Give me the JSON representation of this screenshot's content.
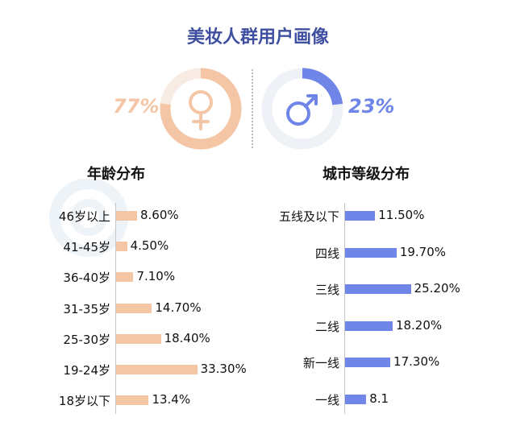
{
  "title": "美妆人群用户画像",
  "gender": {
    "female": {
      "pct_text": "77%",
      "value": 77,
      "color": "#f4c6a6",
      "icon": "female-icon"
    },
    "male": {
      "pct_text": "23%",
      "value": 23,
      "color": "#6f86e8",
      "icon": "male-icon"
    }
  },
  "chart_data": [
    {
      "type": "bar",
      "orientation": "horizontal",
      "title": "年龄分布",
      "categories": [
        "46岁以上",
        "41-45岁",
        "36-40岁",
        "31-35岁",
        "25-30岁",
        "19-24岁",
        "18岁以下"
      ],
      "values": [
        8.6,
        4.5,
        7.1,
        14.7,
        18.4,
        33.3,
        13.4
      ],
      "value_labels": [
        "8.60%",
        "4.50%",
        "7.10%",
        "14.70%",
        "18.40%",
        "33.30%",
        "13.4%"
      ],
      "color": "#f4c6a6"
    },
    {
      "type": "bar",
      "orientation": "horizontal",
      "title": "城市等级分布",
      "categories": [
        "五线及以下",
        "四线",
        "三线",
        "二线",
        "新一线",
        "一线"
      ],
      "values": [
        11.5,
        19.7,
        25.2,
        18.2,
        17.3,
        8.1
      ],
      "value_labels": [
        "11.50%",
        "19.70%",
        "25.20%",
        "18.20%",
        "17.30%",
        "8.1"
      ],
      "color": "#6f86e8"
    }
  ]
}
